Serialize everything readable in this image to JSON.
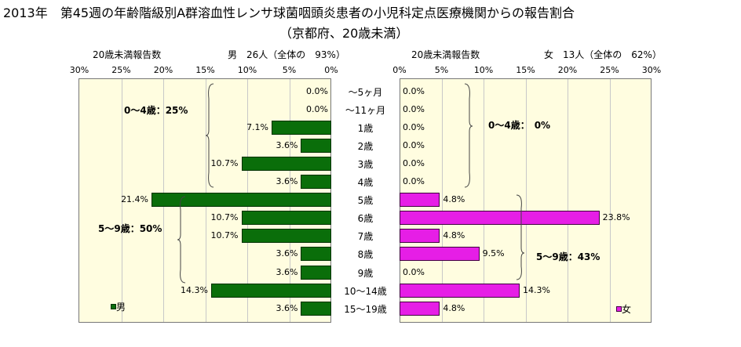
{
  "title": {
    "line1": "2013年　第45週の年齢階級別A群溶血性レンサ球菌咽頭炎患者の小児科定点医療機関からの報告割合",
    "line2": "（京都府、20歳未満）"
  },
  "male_header": {
    "left": "20歳未満報告数",
    "right": "男　26人（全体の　93%）"
  },
  "female_header": {
    "left": "20歳未満報告数",
    "right": "女　13人（全体の　62%）"
  },
  "chart_data": {
    "type": "bar",
    "orientation": "horizontal-butterfly",
    "categories": [
      "～5ヶ月",
      "～11ヶ月",
      "1歳",
      "2歳",
      "3歳",
      "4歳",
      "5歳",
      "6歳",
      "7歳",
      "8歳",
      "9歳",
      "10～14歳",
      "15～19歳"
    ],
    "series": [
      {
        "name": "男",
        "values": [
          0.0,
          0.0,
          7.1,
          3.6,
          10.7,
          3.6,
          21.4,
          10.7,
          10.7,
          3.6,
          3.6,
          14.3,
          3.6
        ],
        "color": "#0a6e0a"
      },
      {
        "name": "女",
        "values": [
          0.0,
          0.0,
          0.0,
          0.0,
          0.0,
          0.0,
          4.8,
          23.8,
          4.8,
          9.5,
          0.0,
          14.3,
          4.8
        ],
        "color": "#e61ee6"
      }
    ],
    "male_ticks": [
      "30%",
      "25%",
      "20%",
      "15%",
      "10%",
      "5%",
      "0%"
    ],
    "female_ticks": [
      "0%",
      "5%",
      "10%",
      "15%",
      "20%",
      "25%",
      "30%"
    ],
    "xlim": [
      0,
      30
    ],
    "unit": "%",
    "annotations": {
      "male_0_4": "0～4歳：25%",
      "male_5_9": "5～9歳：50%",
      "female_0_4": "0～4歳：　0%",
      "female_5_9": "5～9歳：43%"
    },
    "legend": {
      "male": "男",
      "female": "女"
    }
  }
}
